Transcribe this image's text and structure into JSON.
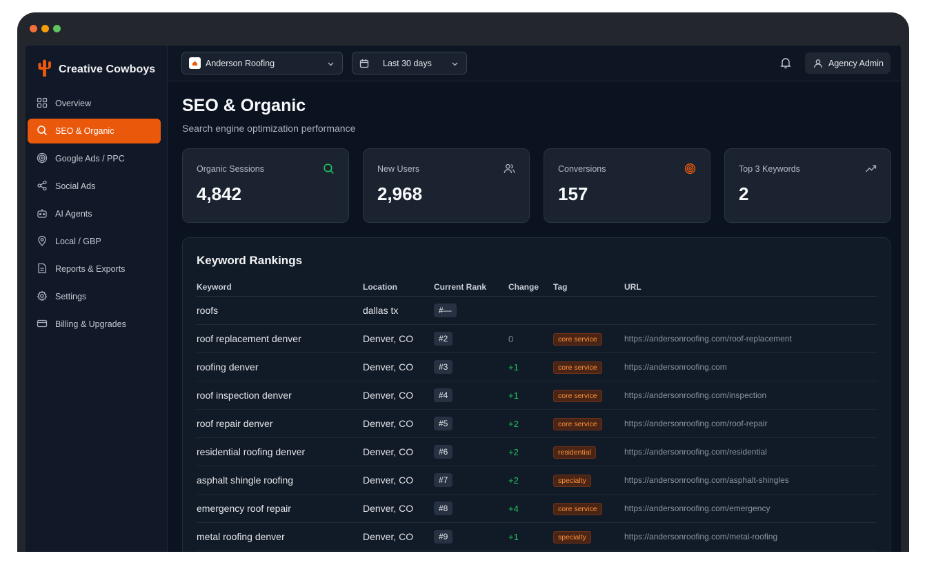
{
  "colors": {
    "accent": "#ea580c",
    "positive": "#22c55e",
    "neutral_change": "#7b8494",
    "window_dots": [
      "#f46d3a",
      "#f59e0b",
      "#5ec45b"
    ]
  },
  "sidebar": {
    "brand": "Creative Cowboys",
    "logo_icon": "cactus-icon",
    "items": [
      {
        "label": "Overview",
        "icon": "grid-icon",
        "active": false
      },
      {
        "label": "SEO & Organic",
        "icon": "search-icon",
        "active": true
      },
      {
        "label": "Google Ads / PPC",
        "icon": "target-icon",
        "active": false
      },
      {
        "label": "Social Ads",
        "icon": "share-icon",
        "active": false
      },
      {
        "label": "AI Agents",
        "icon": "bot-icon",
        "active": false
      },
      {
        "label": "Local / GBP",
        "icon": "map-pin-icon",
        "active": false
      },
      {
        "label": "Reports & Exports",
        "icon": "file-icon",
        "active": false
      },
      {
        "label": "Settings",
        "icon": "gear-icon",
        "active": false
      },
      {
        "label": "Billing & Upgrades",
        "icon": "credit-card-icon",
        "active": false
      }
    ]
  },
  "topbar": {
    "client": "Anderson Roofing",
    "date_range": "Last 30 days",
    "user": "Agency Admin"
  },
  "page": {
    "title": "SEO & Organic",
    "subtitle": "Search engine optimization performance"
  },
  "stats": [
    {
      "label": "Organic Sessions",
      "value": "4,842",
      "icon": "search-icon"
    },
    {
      "label": "New Users",
      "value": "2,968",
      "icon": "users-icon"
    },
    {
      "label": "Conversions",
      "value": "157",
      "icon": "target-icon"
    },
    {
      "label": "Top 3 Keywords",
      "value": "2",
      "icon": "trending-up-icon"
    }
  ],
  "keywords": {
    "title": "Keyword Rankings",
    "headers": {
      "keyword": "Keyword",
      "location": "Location",
      "rank": "Current Rank",
      "change": "Change",
      "tag": "Tag",
      "url": "URL"
    },
    "rows": [
      {
        "keyword": "roofs",
        "location": "dallas tx",
        "rank": "#—",
        "change": "",
        "tag": "",
        "url": ""
      },
      {
        "keyword": "roof replacement denver",
        "location": "Denver, CO",
        "rank": "#2",
        "change": "0",
        "tag": "core service",
        "url": "https://andersonroofing.com/roof-replacement"
      },
      {
        "keyword": "roofing denver",
        "location": "Denver, CO",
        "rank": "#3",
        "change": "+1",
        "tag": "core service",
        "url": "https://andersonroofing.com"
      },
      {
        "keyword": "roof inspection denver",
        "location": "Denver, CO",
        "rank": "#4",
        "change": "+1",
        "tag": "core service",
        "url": "https://andersonroofing.com/inspection"
      },
      {
        "keyword": "roof repair denver",
        "location": "Denver, CO",
        "rank": "#5",
        "change": "+2",
        "tag": "core service",
        "url": "https://andersonroofing.com/roof-repair"
      },
      {
        "keyword": "residential roofing denver",
        "location": "Denver, CO",
        "rank": "#6",
        "change": "+2",
        "tag": "residential",
        "url": "https://andersonroofing.com/residential"
      },
      {
        "keyword": "asphalt shingle roofing",
        "location": "Denver, CO",
        "rank": "#7",
        "change": "+2",
        "tag": "specialty",
        "url": "https://andersonroofing.com/asphalt-shingles"
      },
      {
        "keyword": "emergency roof repair",
        "location": "Denver, CO",
        "rank": "#8",
        "change": "+4",
        "tag": "core service",
        "url": "https://andersonroofing.com/emergency"
      },
      {
        "keyword": "metal roofing denver",
        "location": "Denver, CO",
        "rank": "#9",
        "change": "+1",
        "tag": "specialty",
        "url": "https://andersonroofing.com/metal-roofing"
      }
    ]
  }
}
